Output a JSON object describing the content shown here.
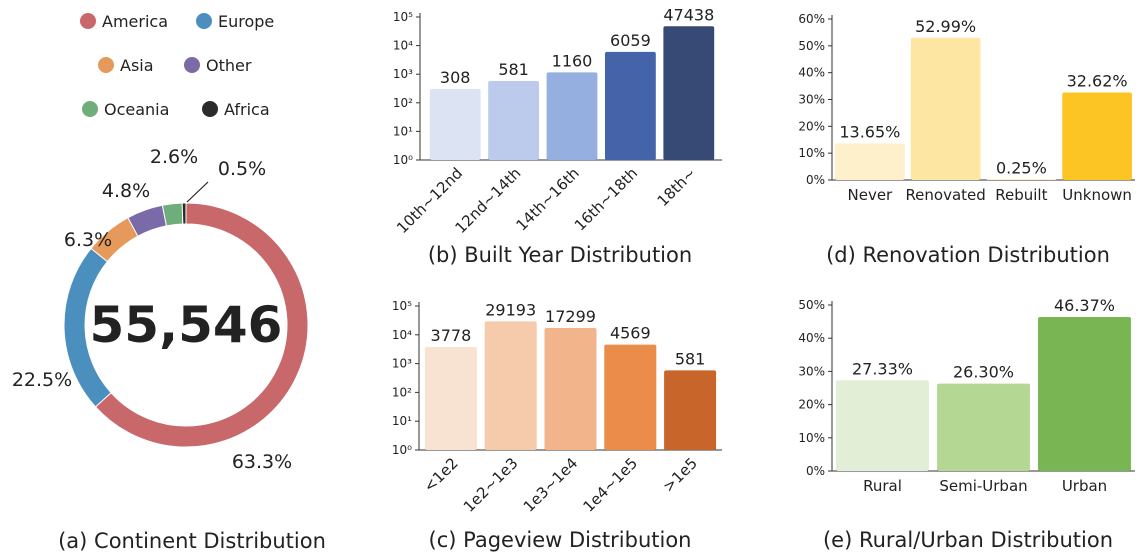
{
  "chart_data": [
    {
      "id": "continent",
      "type": "pie",
      "title": "(a) Continent Distribution",
      "center_label": "55,546",
      "slices": [
        {
          "name": "America",
          "value": 63.3,
          "label": "63.3%",
          "color": "#c8686a"
        },
        {
          "name": "Europe",
          "value": 22.5,
          "label": "22.5%",
          "color": "#4a8fbd"
        },
        {
          "name": "Asia",
          "value": 6.3,
          "label": "6.3%",
          "color": "#e59a5b"
        },
        {
          "name": "Other",
          "value": 4.8,
          "label": "4.8%",
          "color": "#7a6aa8"
        },
        {
          "name": "Oceania",
          "value": 2.6,
          "label": "2.6%",
          "color": "#6fae7a"
        },
        {
          "name": "Africa",
          "value": 0.5,
          "label": "0.5%",
          "color": "#2b2b2b"
        }
      ]
    },
    {
      "id": "built_year",
      "type": "bar",
      "yscale": "log",
      "title": "(b) Built Year Distribution",
      "categories": [
        "10th~12nd",
        "12nd~14th",
        "14th~16th",
        "16th~18th",
        "18th~"
      ],
      "values": [
        308,
        581,
        1160,
        6059,
        47438
      ],
      "value_labels": [
        "308",
        "581",
        "1160",
        "6059",
        "47438"
      ],
      "colors": [
        "#dce3f2",
        "#bccbec",
        "#94afe0",
        "#4563a8",
        "#364a75"
      ],
      "yticks": [
        "10⁰",
        "10¹",
        "10²",
        "10³",
        "10⁴",
        "10⁵"
      ],
      "ylim": [
        1,
        100000
      ]
    },
    {
      "id": "pageview",
      "type": "bar",
      "yscale": "log",
      "title": "(c) Pageview Distribution",
      "categories": [
        "<1e2",
        "1e2~1e3",
        "1e3~1e4",
        "1e4~1e5",
        ">1e5"
      ],
      "values": [
        3778,
        29193,
        17299,
        4569,
        581
      ],
      "value_labels": [
        "3778",
        "29193",
        "17299",
        "4569",
        "581"
      ],
      "colors": [
        "#f8e3d2",
        "#f6cbac",
        "#f2b58b",
        "#ec8c4a",
        "#c8652b"
      ],
      "yticks": [
        "10⁰",
        "10¹",
        "10²",
        "10³",
        "10⁴",
        "10⁵"
      ],
      "ylim": [
        1,
        100000
      ]
    },
    {
      "id": "renovation",
      "type": "bar",
      "title": "(d) Renovation Distribution",
      "categories": [
        "Never",
        "Renovated",
        "Rebuilt",
        "Unknown"
      ],
      "values": [
        13.65,
        52.99,
        0.25,
        32.62
      ],
      "value_labels": [
        "13.65%",
        "52.99%",
        "0.25%",
        "32.62%"
      ],
      "colors": [
        "#fdf0ca",
        "#fde6a2",
        "#fde6a2",
        "#fdc523"
      ],
      "yticks": [
        "0%",
        "10%",
        "20%",
        "30%",
        "40%",
        "50%",
        "60%"
      ],
      "ylim": [
        0,
        60
      ]
    },
    {
      "id": "rural_urban",
      "type": "bar",
      "title": "(e) Rural/Urban Distribution",
      "categories": [
        "Rural",
        "Semi-Urban",
        "Urban"
      ],
      "values": [
        27.33,
        26.3,
        46.37
      ],
      "value_labels": [
        "27.33%",
        "26.30%",
        "46.37%"
      ],
      "colors": [
        "#e2efd6",
        "#b4d794",
        "#7ab553"
      ],
      "yticks": [
        "0%",
        "10%",
        "20%",
        "30%",
        "40%",
        "50%"
      ],
      "ylim": [
        0,
        50
      ]
    }
  ]
}
